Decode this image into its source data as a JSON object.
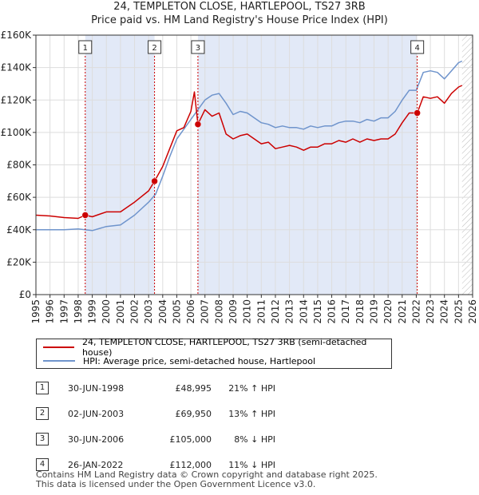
{
  "header": {
    "title_line1": "24, TEMPLETON CLOSE, HARTLEPOOL, TS27 3RB",
    "title_line2": "Price paid vs. HM Land Registry's House Price Index (HPI)"
  },
  "chart_data": {
    "type": "line",
    "xlim": [
      1995,
      2026
    ],
    "ylim": [
      0,
      160000
    ],
    "x_ticks": [
      1995,
      1996,
      1997,
      1998,
      1999,
      2000,
      2001,
      2002,
      2003,
      2004,
      2005,
      2006,
      2007,
      2008,
      2009,
      2010,
      2011,
      2012,
      2013,
      2014,
      2015,
      2016,
      2017,
      2018,
      2019,
      2020,
      2021,
      2022,
      2023,
      2024,
      2025,
      2026
    ],
    "y_ticks": [
      {
        "value": 0,
        "label": "£0"
      },
      {
        "value": 20000,
        "label": "£20K"
      },
      {
        "value": 40000,
        "label": "£40K"
      },
      {
        "value": 60000,
        "label": "£60K"
      },
      {
        "value": 80000,
        "label": "£80K"
      },
      {
        "value": 100000,
        "label": "£100K"
      },
      {
        "value": 120000,
        "label": "£120K"
      },
      {
        "value": 140000,
        "label": "£140K"
      },
      {
        "value": 160000,
        "label": "£160K"
      }
    ],
    "colors": {
      "property": "#cc0000",
      "hpi": "#6f94cc",
      "shade": "#dbe3f5",
      "grid": "#dddddd",
      "marker_line": "#cc0000"
    },
    "shaded_periods": [
      [
        1998.5,
        2003.42
      ],
      [
        2006.5,
        2022.07
      ]
    ],
    "future_hatch_from": 2025.25,
    "series": [
      {
        "name": "24, TEMPLETON CLOSE, HARTLEPOOL, TS27 3RB (semi-detached house)",
        "color": "#cc0000",
        "points": [
          [
            1995.0,
            49000
          ],
          [
            1996.0,
            48500
          ],
          [
            1997.0,
            47500
          ],
          [
            1998.0,
            47000
          ],
          [
            1998.5,
            48995
          ],
          [
            1999.0,
            48000
          ],
          [
            2000.0,
            51000
          ],
          [
            2001.0,
            51000
          ],
          [
            2002.0,
            57000
          ],
          [
            2003.0,
            64000
          ],
          [
            2003.42,
            69950
          ],
          [
            2004.0,
            79000
          ],
          [
            2004.5,
            90000
          ],
          [
            2005.0,
            101000
          ],
          [
            2005.5,
            103000
          ],
          [
            2006.0,
            113000
          ],
          [
            2006.25,
            125000
          ],
          [
            2006.5,
            105000
          ],
          [
            2007.0,
            114000
          ],
          [
            2007.5,
            110000
          ],
          [
            2008.0,
            112000
          ],
          [
            2008.5,
            99000
          ],
          [
            2009.0,
            96000
          ],
          [
            2009.5,
            98000
          ],
          [
            2010.0,
            99000
          ],
          [
            2010.5,
            96000
          ],
          [
            2011.0,
            93000
          ],
          [
            2011.5,
            94000
          ],
          [
            2012.0,
            90000
          ],
          [
            2012.5,
            91000
          ],
          [
            2013.0,
            92000
          ],
          [
            2013.5,
            91000
          ],
          [
            2014.0,
            89000
          ],
          [
            2014.5,
            91000
          ],
          [
            2015.0,
            91000
          ],
          [
            2015.5,
            93000
          ],
          [
            2016.0,
            93000
          ],
          [
            2016.5,
            95000
          ],
          [
            2017.0,
            94000
          ],
          [
            2017.5,
            96000
          ],
          [
            2018.0,
            94000
          ],
          [
            2018.5,
            96000
          ],
          [
            2019.0,
            95000
          ],
          [
            2019.5,
            96000
          ],
          [
            2020.0,
            96000
          ],
          [
            2020.5,
            99000
          ],
          [
            2021.0,
            106000
          ],
          [
            2021.5,
            112000
          ],
          [
            2022.07,
            112000
          ],
          [
            2022.5,
            122000
          ],
          [
            2023.0,
            121000
          ],
          [
            2023.5,
            122000
          ],
          [
            2024.0,
            118000
          ],
          [
            2024.5,
            124000
          ],
          [
            2025.0,
            128000
          ],
          [
            2025.25,
            129000
          ]
        ]
      },
      {
        "name": "HPI: Average price, semi-detached house, Hartlepool",
        "color": "#6f94cc",
        "points": [
          [
            1995.0,
            40000
          ],
          [
            1996.0,
            40000
          ],
          [
            1997.0,
            40000
          ],
          [
            1998.0,
            40500
          ],
          [
            1999.0,
            39500
          ],
          [
            2000.0,
            42000
          ],
          [
            2001.0,
            43000
          ],
          [
            2002.0,
            49000
          ],
          [
            2003.0,
            57000
          ],
          [
            2003.5,
            62000
          ],
          [
            2004.0,
            73000
          ],
          [
            2004.5,
            85000
          ],
          [
            2005.0,
            96000
          ],
          [
            2005.5,
            102000
          ],
          [
            2006.0,
            108000
          ],
          [
            2006.5,
            114000
          ],
          [
            2007.0,
            120000
          ],
          [
            2007.5,
            123000
          ],
          [
            2008.0,
            124000
          ],
          [
            2008.5,
            118000
          ],
          [
            2009.0,
            111000
          ],
          [
            2009.5,
            113000
          ],
          [
            2010.0,
            112000
          ],
          [
            2010.5,
            109000
          ],
          [
            2011.0,
            106000
          ],
          [
            2011.5,
            105000
          ],
          [
            2012.0,
            103000
          ],
          [
            2012.5,
            104000
          ],
          [
            2013.0,
            103000
          ],
          [
            2013.5,
            103000
          ],
          [
            2014.0,
            102000
          ],
          [
            2014.5,
            104000
          ],
          [
            2015.0,
            103000
          ],
          [
            2015.5,
            104000
          ],
          [
            2016.0,
            104000
          ],
          [
            2016.5,
            106000
          ],
          [
            2017.0,
            107000
          ],
          [
            2017.5,
            107000
          ],
          [
            2018.0,
            106000
          ],
          [
            2018.5,
            108000
          ],
          [
            2019.0,
            107000
          ],
          [
            2019.5,
            109000
          ],
          [
            2020.0,
            109000
          ],
          [
            2020.5,
            113000
          ],
          [
            2021.0,
            120000
          ],
          [
            2021.5,
            126000
          ],
          [
            2022.0,
            126000
          ],
          [
            2022.5,
            137000
          ],
          [
            2023.0,
            138000
          ],
          [
            2023.5,
            137000
          ],
          [
            2024.0,
            133000
          ],
          [
            2024.5,
            138000
          ],
          [
            2025.0,
            143000
          ],
          [
            2025.25,
            144000
          ]
        ]
      }
    ],
    "sale_markers": [
      {
        "id": "1",
        "x": 1998.5,
        "value": 48995
      },
      {
        "id": "2",
        "x": 2003.42,
        "value": 69950
      },
      {
        "id": "3",
        "x": 2006.5,
        "value": 105000
      },
      {
        "id": "4",
        "x": 2022.07,
        "value": 112000
      }
    ]
  },
  "legend": {
    "property_label": "24, TEMPLETON CLOSE, HARTLEPOOL, TS27 3RB (semi-detached house)",
    "hpi_label": "HPI: Average price, semi-detached house, Hartlepool"
  },
  "sales": [
    {
      "num": "1",
      "date": "30-JUN-1998",
      "price": "£48,995",
      "delta": "21% ↑ HPI"
    },
    {
      "num": "2",
      "date": "02-JUN-2003",
      "price": "£69,950",
      "delta": "13% ↑ HPI"
    },
    {
      "num": "3",
      "date": "30-JUN-2006",
      "price": "£105,000",
      "delta": "8% ↓ HPI"
    },
    {
      "num": "4",
      "date": "26-JAN-2022",
      "price": "£112,000",
      "delta": "11% ↓ HPI"
    }
  ],
  "footer": {
    "line1": "Contains HM Land Registry data © Crown copyright and database right 2025.",
    "line2": "This data is licensed under the Open Government Licence v3.0."
  }
}
